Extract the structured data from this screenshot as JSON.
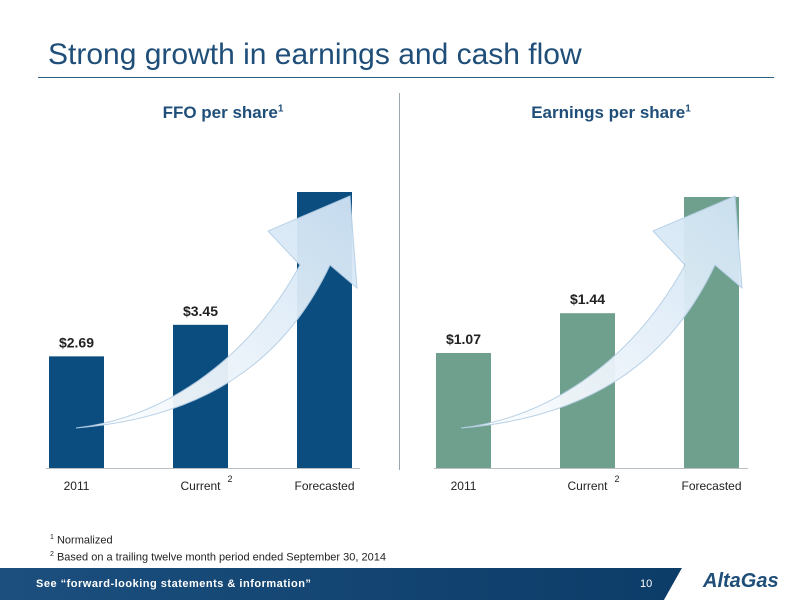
{
  "slide": {
    "title": "Strong growth in earnings and cash flow",
    "footer_text": "See “forward-looking statements & information”",
    "page_number": "10",
    "logo_text": "AltaGas",
    "footnotes": [
      {
        "marker": "1",
        "text": "Normalized"
      },
      {
        "marker": "2",
        "text": "Based on a trailing twelve month period ended September 30, 2014"
      }
    ]
  },
  "chart_data": [
    {
      "type": "bar",
      "title": "FFO per share",
      "title_superscript": "1",
      "categories": [
        "2011",
        "Current",
        "Forecasted"
      ],
      "category_superscripts": [
        "",
        "2",
        ""
      ],
      "values": [
        2.69,
        3.45,
        null
      ],
      "data_labels": [
        "$2.69",
        "$3.45",
        ""
      ],
      "color": "#0c4d80",
      "grid": false
    },
    {
      "type": "bar",
      "title": "Earnings per share",
      "title_superscript": "1",
      "categories": [
        "2011",
        "Current",
        "Forecasted"
      ],
      "category_superscripts": [
        "",
        "2",
        ""
      ],
      "values": [
        1.07,
        1.44,
        null
      ],
      "data_labels": [
        "$1.07",
        "$1.44",
        ""
      ],
      "color": "#6fa08d",
      "grid": false
    }
  ]
}
